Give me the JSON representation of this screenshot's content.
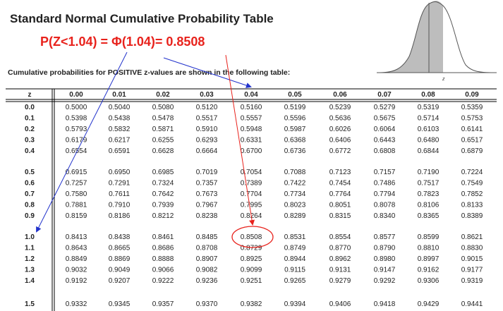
{
  "title": "Standard Normal Cumulative Probability Table",
  "formula": "P(Z<1.04) = Φ(1.04)= 0.8508",
  "subtitle": "Cumulative probabilities for POSITIVE z-values are shown in the following table:",
  "curve_label": "z",
  "highlight": {
    "row": "1.0",
    "col": "0.04",
    "value": "0.8508"
  },
  "colors": {
    "formula": "#e8221c",
    "blue_arrow": "#2233cc",
    "red_arrow": "#e8221c",
    "shade": "#bdbdbd"
  },
  "table": {
    "z_header": "z",
    "columns": [
      "0.00",
      "0.01",
      "0.02",
      "0.03",
      "0.04",
      "0.05",
      "0.06",
      "0.07",
      "0.08",
      "0.09"
    ],
    "groups": [
      {
        "rows": [
          {
            "z": "0.0",
            "values": [
              "0.5000",
              "0.5040",
              "0.5080",
              "0.5120",
              "0.5160",
              "0.5199",
              "0.5239",
              "0.5279",
              "0.5319",
              "0.5359"
            ]
          },
          {
            "z": "0.1",
            "values": [
              "0.5398",
              "0.5438",
              "0.5478",
              "0.5517",
              "0.5557",
              "0.5596",
              "0.5636",
              "0.5675",
              "0.5714",
              "0.5753"
            ]
          },
          {
            "z": "0.2",
            "values": [
              "0.5793",
              "0.5832",
              "0.5871",
              "0.5910",
              "0.5948",
              "0.5987",
              "0.6026",
              "0.6064",
              "0.6103",
              "0.6141"
            ]
          },
          {
            "z": "0.3",
            "values": [
              "0.6179",
              "0.6217",
              "0.6255",
              "0.6293",
              "0.6331",
              "0.6368",
              "0.6406",
              "0.6443",
              "0.6480",
              "0.6517"
            ]
          },
          {
            "z": "0.4",
            "values": [
              "0.6554",
              "0.6591",
              "0.6628",
              "0.6664",
              "0.6700",
              "0.6736",
              "0.6772",
              "0.6808",
              "0.6844",
              "0.6879"
            ]
          }
        ]
      },
      {
        "rows": [
          {
            "z": "0.5",
            "values": [
              "0.6915",
              "0.6950",
              "0.6985",
              "0.7019",
              "0.7054",
              "0.7088",
              "0.7123",
              "0.7157",
              "0.7190",
              "0.7224"
            ]
          },
          {
            "z": "0.6",
            "values": [
              "0.7257",
              "0.7291",
              "0.7324",
              "0.7357",
              "0.7389",
              "0.7422",
              "0.7454",
              "0.7486",
              "0.7517",
              "0.7549"
            ]
          },
          {
            "z": "0.7",
            "values": [
              "0.7580",
              "0.7611",
              "0.7642",
              "0.7673",
              "0.7704",
              "0.7734",
              "0.7764",
              "0.7794",
              "0.7823",
              "0.7852"
            ]
          },
          {
            "z": "0.8",
            "values": [
              "0.7881",
              "0.7910",
              "0.7939",
              "0.7967",
              "0.7995",
              "0.8023",
              "0.8051",
              "0.8078",
              "0.8106",
              "0.8133"
            ]
          },
          {
            "z": "0.9",
            "values": [
              "0.8159",
              "0.8186",
              "0.8212",
              "0.8238",
              "0.8264",
              "0.8289",
              "0.8315",
              "0.8340",
              "0.8365",
              "0.8389"
            ]
          }
        ]
      },
      {
        "rows": [
          {
            "z": "1.0",
            "values": [
              "0.8413",
              "0.8438",
              "0.8461",
              "0.8485",
              "0.8508",
              "0.8531",
              "0.8554",
              "0.8577",
              "0.8599",
              "0.8621"
            ]
          },
          {
            "z": "1.1",
            "values": [
              "0.8643",
              "0.8665",
              "0.8686",
              "0.8708",
              "0.8729",
              "0.8749",
              "0.8770",
              "0.8790",
              "0.8810",
              "0.8830"
            ]
          },
          {
            "z": "1.2",
            "values": [
              "0.8849",
              "0.8869",
              "0.8888",
              "0.8907",
              "0.8925",
              "0.8944",
              "0.8962",
              "0.8980",
              "0.8997",
              "0.9015"
            ]
          },
          {
            "z": "1.3",
            "values": [
              "0.9032",
              "0.9049",
              "0.9066",
              "0.9082",
              "0.9099",
              "0.9115",
              "0.9131",
              "0.9147",
              "0.9162",
              "0.9177"
            ]
          },
          {
            "z": "1.4",
            "values": [
              "0.9192",
              "0.9207",
              "0.9222",
              "0.9236",
              "0.9251",
              "0.9265",
              "0.9279",
              "0.9292",
              "0.9306",
              "0.9319"
            ]
          }
        ]
      },
      {
        "rows": [
          {
            "z": "1.5",
            "values": [
              "0.9332",
              "0.9345",
              "0.9357",
              "0.9370",
              "0.9382",
              "0.9394",
              "0.9406",
              "0.9418",
              "0.9429",
              "0.9441"
            ]
          }
        ]
      }
    ]
  }
}
